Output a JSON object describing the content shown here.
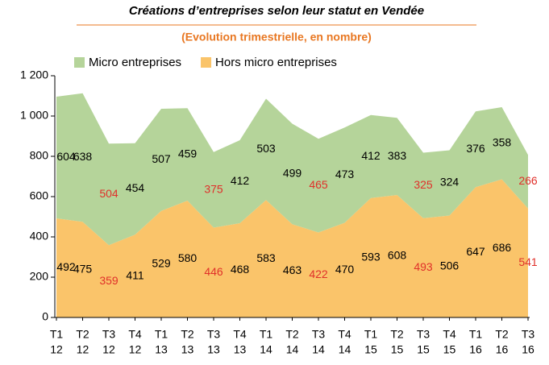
{
  "chart_data": {
    "type": "stacked_area",
    "title": "Créations d’entreprises selon leur statut en Vendée",
    "subtitle": "(Evolution trimestrielle, en nombre)",
    "categories": [
      [
        "T1",
        "12"
      ],
      [
        "T2",
        "12"
      ],
      [
        "T3",
        "12"
      ],
      [
        "T4",
        "12"
      ],
      [
        "T1",
        "13"
      ],
      [
        "T2",
        "13"
      ],
      [
        "T3",
        "13"
      ],
      [
        "T4",
        "13"
      ],
      [
        "T1",
        "14"
      ],
      [
        "T2",
        "14"
      ],
      [
        "T3",
        "14"
      ],
      [
        "T4",
        "14"
      ],
      [
        "T1",
        "15"
      ],
      [
        "T2",
        "15"
      ],
      [
        "T3",
        "15"
      ],
      [
        "T4",
        "15"
      ],
      [
        "T1",
        "16"
      ],
      [
        "T2",
        "16"
      ],
      [
        "T3",
        "16"
      ]
    ],
    "series": [
      {
        "name": "Hors micro entreprises",
        "color": "#fac46a",
        "values": [
          492,
          475,
          359,
          411,
          529,
          580,
          446,
          468,
          583,
          463,
          422,
          470,
          593,
          608,
          493,
          506,
          647,
          686,
          541
        ]
      },
      {
        "name": "Micro entreprises",
        "color": "#b5d49a",
        "values": [
          604,
          638,
          504,
          454,
          507,
          459,
          375,
          412,
          503,
          499,
          465,
          473,
          412,
          383,
          325,
          324,
          376,
          358,
          266
        ]
      }
    ],
    "label_colors": [
      "#000",
      "#000",
      "#e0302a",
      "#000",
      "#000",
      "#000",
      "#e0302a",
      "#000",
      "#000",
      "#000",
      "#e0302a",
      "#000",
      "#000",
      "#000",
      "#e0302a",
      "#000",
      "#000",
      "#000",
      "#e0302a"
    ],
    "ylim": [
      0,
      1200
    ],
    "yticks": [
      0,
      200,
      400,
      600,
      800,
      {
        "value": 1000,
        "label": "1 000"
      },
      {
        "value": 1200,
        "label": "1 200"
      }
    ],
    "grid": false
  }
}
